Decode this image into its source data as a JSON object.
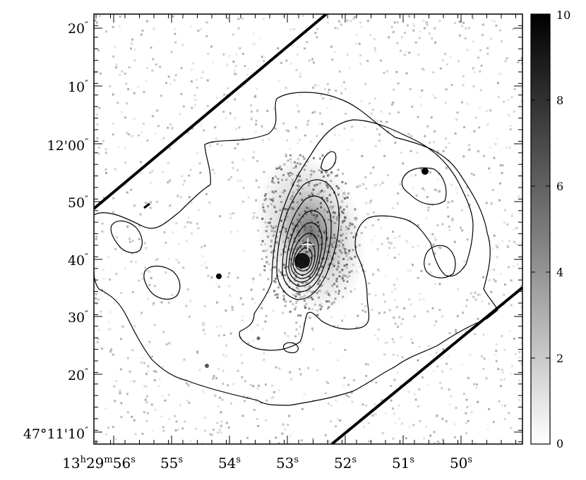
{
  "image": {
    "kind": "astronomical-image-with-contours",
    "dec_labels": [
      {
        "sec": "20",
        "major": ""
      },
      {
        "sec": "10",
        "major": ""
      },
      {
        "sec": "00",
        "major": "12'"
      },
      {
        "sec": "50",
        "major": ""
      },
      {
        "sec": "40",
        "major": ""
      },
      {
        "sec": "30",
        "major": ""
      },
      {
        "sec": "20",
        "major": ""
      },
      {
        "sec": "10",
        "major": "47°11'"
      }
    ],
    "ra_labels": [
      {
        "h": "13",
        "m": "29",
        "s": "56"
      },
      {
        "s": "55"
      },
      {
        "s": "54"
      },
      {
        "s": "53"
      },
      {
        "s": "52"
      },
      {
        "s": "51"
      },
      {
        "s": "50"
      }
    ],
    "colorbar": {
      "min": 0,
      "max": 10,
      "ticks": [
        "10",
        "8",
        "6",
        "4",
        "2",
        "0"
      ],
      "colors": {
        "low": "#ffffff",
        "high": "#000000"
      }
    },
    "colors": {
      "background": "#ffffff",
      "ink": "#000000",
      "marker": "#ffffff"
    }
  }
}
